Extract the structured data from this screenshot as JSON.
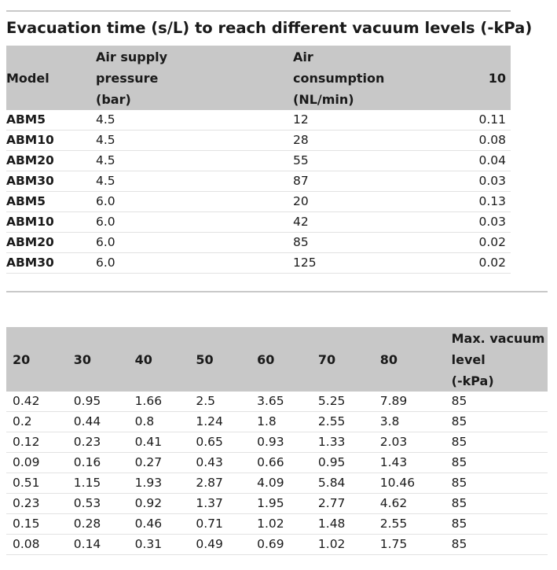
{
  "caption": "Evacuation time (s/L) to reach different vacuum levels (-kPa)",
  "table1": {
    "headers": {
      "model": "Model",
      "pressure_l1": "Air supply",
      "pressure_l2": "pressure",
      "pressure_l3": "(bar)",
      "consumption_l1": "Air",
      "consumption_l2": "consumption",
      "consumption_l3": "(NL/min)",
      "v10": "10"
    },
    "rows": [
      {
        "model": "ABM5",
        "pressure": "4.5",
        "consumption": "12",
        "v10": "0.11"
      },
      {
        "model": "ABM10",
        "pressure": "4.5",
        "consumption": "28",
        "v10": "0.08"
      },
      {
        "model": "ABM20",
        "pressure": "4.5",
        "consumption": "55",
        "v10": "0.04"
      },
      {
        "model": "ABM30",
        "pressure": "4.5",
        "consumption": "87",
        "v10": "0.03"
      },
      {
        "model": "ABM5",
        "pressure": "6.0",
        "consumption": "20",
        "v10": "0.13"
      },
      {
        "model": "ABM10",
        "pressure": "6.0",
        "consumption": "42",
        "v10": "0.03"
      },
      {
        "model": "ABM20",
        "pressure": "6.0",
        "consumption": "85",
        "v10": "0.02"
      },
      {
        "model": "ABM30",
        "pressure": "6.0",
        "consumption": "125",
        "v10": "0.02"
      }
    ]
  },
  "table2": {
    "headers": {
      "v20": "20",
      "v30": "30",
      "v40": "40",
      "v50": "50",
      "v60": "60",
      "v70": "70",
      "v80": "80",
      "max_l1": "Max. vacuum",
      "max_l2": "level",
      "max_l3": "(-kPa)"
    },
    "rows": [
      [
        "0.42",
        "0.95",
        "1.66",
        "2.5",
        "3.65",
        "5.25",
        "7.89",
        "85"
      ],
      [
        "0.2",
        "0.44",
        "0.8",
        "1.24",
        "1.8",
        "2.55",
        "3.8",
        "85"
      ],
      [
        "0.12",
        "0.23",
        "0.41",
        "0.65",
        "0.93",
        "1.33",
        "2.03",
        "85"
      ],
      [
        "0.09",
        "0.16",
        "0.27",
        "0.43",
        "0.66",
        "0.95",
        "1.43",
        "85"
      ],
      [
        "0.51",
        "1.15",
        "1.93",
        "2.87",
        "4.09",
        "5.84",
        "10.46",
        "85"
      ],
      [
        "0.23",
        "0.53",
        "0.92",
        "1.37",
        "1.95",
        "2.77",
        "4.62",
        "85"
      ],
      [
        "0.15",
        "0.28",
        "0.46",
        "0.71",
        "1.02",
        "1.48",
        "2.55",
        "85"
      ],
      [
        "0.08",
        "0.14",
        "0.31",
        "0.49",
        "0.69",
        "1.02",
        "1.75",
        "85"
      ]
    ]
  }
}
